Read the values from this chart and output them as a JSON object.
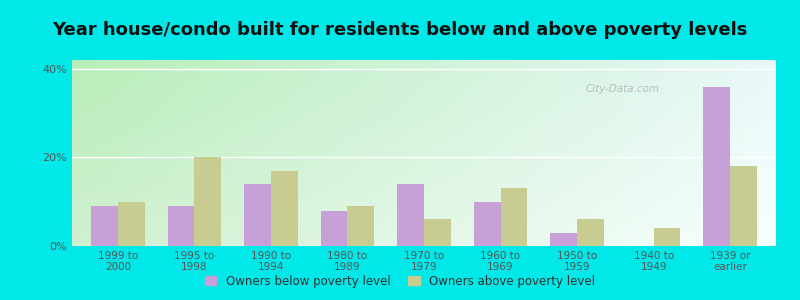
{
  "title": "Year house/condo built for residents below and above poverty levels",
  "categories": [
    "1999 to\n2000",
    "1995 to\n1998",
    "1990 to\n1994",
    "1980 to\n1989",
    "1970 to\n1979",
    "1960 to\n1969",
    "1950 to\n1959",
    "1940 to\n1949",
    "1939 or\nearlier"
  ],
  "below_poverty": [
    9,
    9,
    14,
    8,
    14,
    10,
    3,
    0,
    36
  ],
  "above_poverty": [
    10,
    20,
    17,
    9,
    6,
    13,
    6,
    4,
    18
  ],
  "below_color": "#c8a0d8",
  "above_color": "#c8cc90",
  "ylim": [
    0,
    42
  ],
  "yticks": [
    0,
    20,
    40
  ],
  "ytick_labels": [
    "0%",
    "20%",
    "40%"
  ],
  "legend_below": "Owners below poverty level",
  "legend_above": "Owners above poverty level",
  "bg_topleft": "#b8eeb8",
  "bg_topright": "#e8f8f8",
  "bg_bottomleft": "#d0f0d0",
  "bg_bottomright": "#f8ffff",
  "outer_color": "#00e8e8",
  "title_fontsize": 13,
  "bar_width": 0.35,
  "watermark": "City-Data.com"
}
